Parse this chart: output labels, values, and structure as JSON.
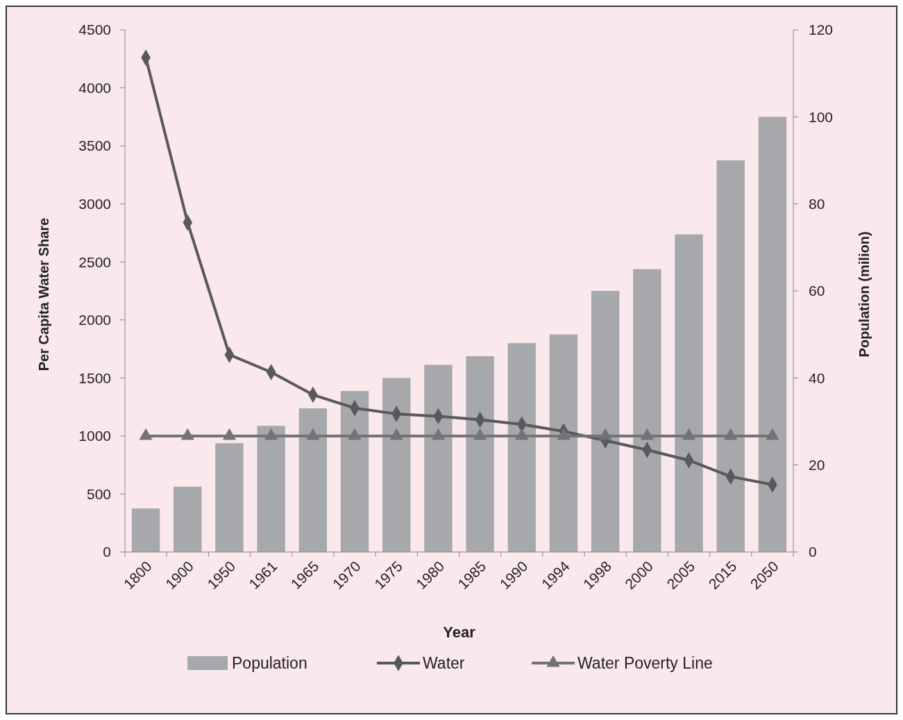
{
  "chart_data": {
    "type": "bar",
    "xlabel": "Year",
    "ylabel": "Per Capita Water Share",
    "y2label": "Population (milion)",
    "categories": [
      "1800",
      "1900",
      "1950",
      "1961",
      "1965",
      "1970",
      "1975",
      "1980",
      "1985",
      "1990",
      "1994",
      "1998",
      "2000",
      "2005",
      "2015",
      "2050"
    ],
    "series": [
      {
        "name": "Population",
        "axis": "y2",
        "color": "#a6a8ab",
        "values": [
          10,
          15,
          25,
          29,
          33,
          37,
          40,
          43,
          45,
          48,
          50,
          60,
          65,
          73,
          90,
          100
        ]
      },
      {
        "name": "Water",
        "type": "line",
        "color": "#58595b",
        "marker": "diamond",
        "values": [
          4260,
          2840,
          1700,
          1550,
          1355,
          1240,
          1190,
          1170,
          1140,
          1100,
          1040,
          960,
          880,
          790,
          650,
          580
        ]
      },
      {
        "name": "Water Poverty Line",
        "type": "line",
        "color": "#717376",
        "marker": "triangle",
        "values": [
          1000,
          1000,
          1000,
          1000,
          1000,
          1000,
          1000,
          1000,
          1000,
          1000,
          1000,
          1000,
          1000,
          1000,
          1000,
          1000
        ]
      }
    ],
    "ylim": [
      0,
      4500
    ],
    "yticks": [
      0,
      500,
      1000,
      1500,
      2000,
      2500,
      3000,
      3500,
      4000,
      4500
    ],
    "y2lim": [
      0,
      120
    ],
    "y2ticks": [
      0,
      20,
      40,
      60,
      80,
      100,
      120
    ],
    "legend": "bottom",
    "grid": false
  }
}
